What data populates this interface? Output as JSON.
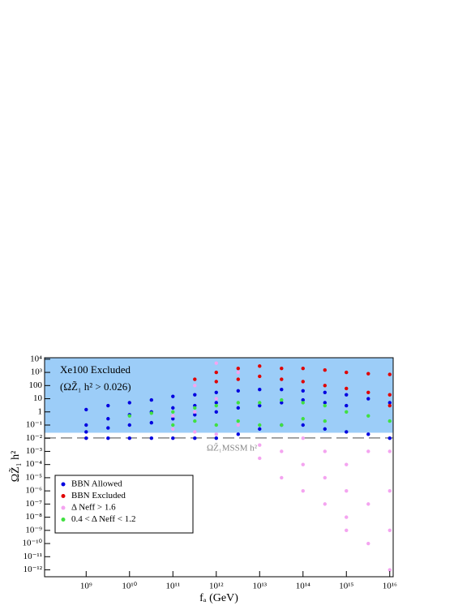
{
  "chart_data": {
    "type": "scatter",
    "x_label": "fₐ (GeV)",
    "y_label": "ΩZ̃₁ h²",
    "log_x": true,
    "log_y": true,
    "xlim": [
      110000000.0,
      1.2e+16
    ],
    "ylim": [
      3e-13,
      13000.0
    ],
    "xticks": [
      {
        "value": 1000000000.0,
        "label": "10⁹"
      },
      {
        "value": 10000000000.0,
        "label": "10¹⁰"
      },
      {
        "value": 100000000000.0,
        "label": "10¹¹"
      },
      {
        "value": 1000000000000.0,
        "label": "10¹²"
      },
      {
        "value": 10000000000000.0,
        "label": "10¹³"
      },
      {
        "value": 100000000000000.0,
        "label": "10¹⁴"
      },
      {
        "value": 1000000000000000.0,
        "label": "10¹⁵"
      },
      {
        "value": 1e+16,
        "label": "10¹⁶"
      }
    ],
    "yticks": [
      {
        "value": 10000.0,
        "label": "10⁴"
      },
      {
        "value": 1000.0,
        "label": "10³"
      },
      100,
      10,
      1,
      {
        "value": 0.1,
        "label": "10⁻¹"
      },
      {
        "value": 0.01,
        "label": "10⁻²"
      },
      {
        "value": 0.001,
        "label": "10⁻³"
      },
      {
        "value": 0.0001,
        "label": "10⁻⁴"
      },
      {
        "value": 1e-05,
        "label": "10⁻⁵"
      },
      {
        "value": 1e-06,
        "label": "10⁻⁶"
      },
      {
        "value": 1e-07,
        "label": "10⁻⁷"
      },
      {
        "value": 1e-08,
        "label": "10⁻⁸"
      },
      {
        "value": 1e-09,
        "label": "10⁻⁹"
      },
      {
        "value": 1e-10,
        "label": "10⁻¹⁰"
      },
      {
        "value": 1e-11,
        "label": "10⁻¹¹"
      },
      {
        "value": 1e-12,
        "label": "10⁻¹²"
      }
    ],
    "excluded_region": {
      "label": "Xe100 Excluded",
      "condition": "(ΩZ̃₁ h² > 0.026)",
      "y_min": 0.026,
      "color": "#9ccdf8"
    },
    "reference_line": {
      "label": "ΩZ̃₁MSSM h²",
      "value": 0.0105,
      "color": "#888888"
    },
    "legend": "lower left",
    "series": [
      {
        "name": "BBN Allowed",
        "color": "#0000e0",
        "x": [
          1000000000.0,
          1000000000.0,
          1000000000.0,
          1000000000.0,
          3200000000.0,
          3200000000.0,
          3200000000.0,
          3200000000.0,
          10000000000.0,
          10000000000.0,
          10000000000.0,
          10000000000.0,
          32000000000.0,
          32000000000.0,
          32000000000.0,
          32000000000.0,
          100000000000.0,
          100000000000.0,
          100000000000.0,
          100000000000.0,
          320000000000.0,
          320000000000.0,
          320000000000.0,
          320000000000.0,
          1000000000000.0,
          1000000000000.0,
          1000000000000.0,
          1000000000000.0,
          3200000000000.0,
          3200000000000.0,
          3200000000000.0,
          10000000000000.0,
          10000000000000.0,
          10000000000000.0,
          32000000000000.0,
          32000000000000.0,
          32000000000000.0,
          100000000000000.0,
          100000000000000.0,
          100000000000000.0,
          320000000000000.0,
          320000000000000.0,
          320000000000000.0,
          1000000000000000.0,
          1000000000000000.0,
          1000000000000000.0,
          3200000000000000.0,
          3200000000000000.0,
          1e+16,
          1e+16
        ],
        "y": [
          0.01,
          0.03,
          0.1,
          1.5,
          0.01,
          0.06,
          0.3,
          3,
          0.01,
          0.1,
          0.6,
          5,
          0.01,
          0.15,
          1,
          8,
          0.01,
          0.3,
          2,
          15,
          0.01,
          0.6,
          3,
          20,
          0.01,
          1,
          5,
          30,
          0.02,
          2,
          40,
          0.05,
          3,
          50,
          0.1,
          5,
          50,
          0.1,
          8,
          40,
          0.05,
          5,
          30,
          0.03,
          3,
          20,
          0.02,
          10,
          0.01,
          5
        ]
      },
      {
        "name": "BBN Excluded",
        "color": "#e00000",
        "x": [
          320000000000.0,
          1000000000000.0,
          1000000000000.0,
          3200000000000.0,
          3200000000000.0,
          10000000000000.0,
          10000000000000.0,
          32000000000000.0,
          32000000000000.0,
          100000000000000.0,
          100000000000000.0,
          320000000000000.0,
          320000000000000.0,
          1000000000000000.0,
          1000000000000000.0,
          3200000000000000.0,
          3200000000000000.0,
          1e+16,
          1e+16,
          1e+16
        ],
        "y": [
          300,
          1000,
          200,
          2000,
          300,
          3000,
          500,
          2000,
          300,
          2000,
          200,
          1500,
          100,
          1000,
          60,
          800,
          30,
          700,
          20,
          3
        ]
      },
      {
        "name": "Δ Neff > 1.6",
        "color": "#f4a4f0",
        "x": [
          100000000000.0,
          100000000000.0,
          320000000000.0,
          320000000000.0,
          320000000000.0,
          1000000000000.0,
          1000000000000.0,
          1000000000000.0,
          3200000000000.0,
          3200000000000.0,
          10000000000000.0,
          10000000000000.0,
          32000000000000.0,
          32000000000000.0,
          100000000000000.0,
          100000000000000.0,
          100000000000000.0,
          320000000000000.0,
          320000000000000.0,
          320000000000000.0,
          1000000000000000.0,
          1000000000000000.0,
          1000000000000000.0,
          1000000000000000.0,
          3200000000000000.0,
          3200000000000000.0,
          3200000000000000.0,
          1e+16,
          1e+16,
          1e+16,
          1e+16
        ],
        "y": [
          0.05,
          0.5,
          0.03,
          1,
          100,
          0.02,
          10,
          5000,
          1000,
          0.1,
          0.003,
          0.0003,
          0.001,
          1e-05,
          0.0001,
          1e-06,
          0.01,
          1e-05,
          1e-07,
          0.001,
          1e-06,
          1e-08,
          1e-09,
          0.0001,
          1e-10,
          1e-07,
          0.001,
          1e-12,
          1e-09,
          1e-06,
          0.001
        ]
      },
      {
        "name": "0.4 < Δ Neff < 1.2",
        "color": "#40e040",
        "x": [
          10000000000.0,
          32000000000.0,
          100000000000.0,
          100000000000.0,
          320000000000.0,
          320000000000.0,
          1000000000000.0,
          1000000000000.0,
          3200000000000.0,
          3200000000000.0,
          10000000000000.0,
          10000000000000.0,
          32000000000000.0,
          32000000000000.0,
          100000000000000.0,
          100000000000000.0,
          320000000000000.0,
          320000000000000.0,
          1000000000000000.0,
          3200000000000000.0,
          1e+16
        ],
        "y": [
          0.5,
          0.8,
          0.1,
          1,
          0.2,
          2,
          0.1,
          3,
          0.2,
          5,
          0.1,
          5,
          0.1,
          8,
          0.3,
          5,
          0.2,
          3,
          1,
          0.5,
          0.2
        ]
      }
    ]
  }
}
